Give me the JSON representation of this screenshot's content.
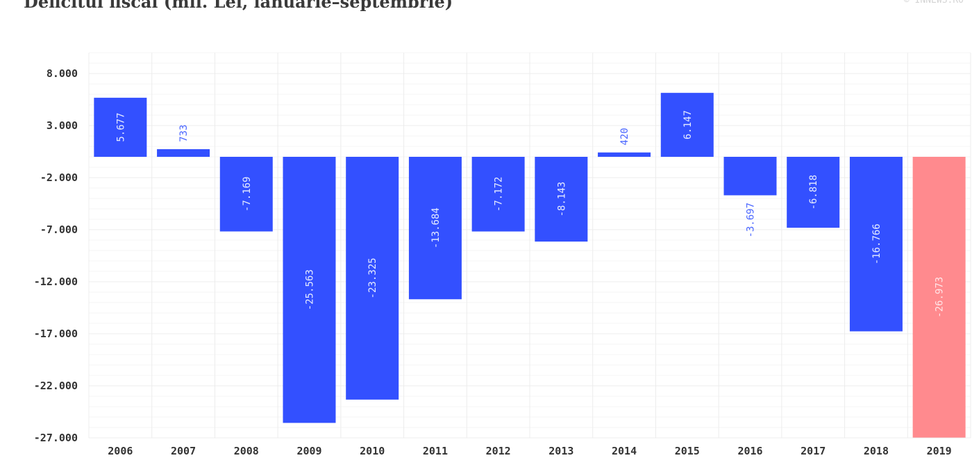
{
  "header": {
    "title": "Deficitul fiscal (mil. Lei, ianuarie–septembrie)",
    "brand": "© INNEWS.RO"
  },
  "colors": {
    "default_bar": "#3350ff",
    "highlight_bar": "#ff8a8e",
    "label_inside_default": "#e6ecff",
    "label_inside_highlight": "#ffe6e8",
    "label_outside": "#4a66ff",
    "grid": "#ececec"
  },
  "chart_data": {
    "type": "bar",
    "categories": [
      "2006",
      "2007",
      "2008",
      "2009",
      "2010",
      "2011",
      "2012",
      "2013",
      "2014",
      "2015",
      "2016",
      "2017",
      "2018",
      "2019"
    ],
    "values": [
      5677,
      733,
      -7169,
      -25563,
      -23325,
      -13684,
      -7172,
      -8143,
      420,
      6147,
      -3697,
      -6818,
      -16766,
      -26973
    ],
    "value_labels": [
      "5.677",
      "733",
      "-7.169",
      "-25.563",
      "-23.325",
      "-13.684",
      "-7.172",
      "-8.143",
      "420",
      "6.147",
      "-3.697",
      "-6.818",
      "-16.766",
      "-26.973"
    ],
    "highlight": [
      "2019"
    ],
    "y_ticks": [
      8000,
      3000,
      -2000,
      -7000,
      -12000,
      -17000,
      -22000,
      -27000
    ],
    "y_tick_labels": [
      "8.000",
      "3.000",
      "-2.000",
      "-7.000",
      "-12.000",
      "-17.000",
      "-22.000",
      "-27.000"
    ],
    "ylim": [
      -27000,
      10000
    ],
    "grid": true,
    "legend": false
  }
}
